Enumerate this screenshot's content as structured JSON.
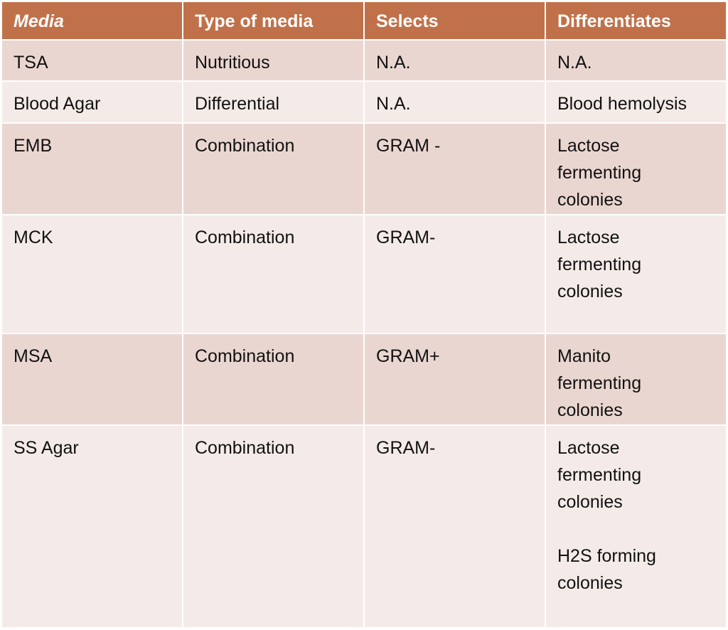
{
  "table": {
    "header": [
      "Media",
      "Type of media",
      "Selects",
      "Differentiates"
    ],
    "rows": [
      [
        "TSA",
        "Nutritious",
        "N.A.",
        "N.A."
      ],
      [
        "Blood Agar",
        "Differential",
        "N.A.",
        "Blood hemolysis"
      ],
      [
        "EMB",
        "Combination",
        "GRAM -",
        [
          "Lactose",
          "fermenting",
          "colonies"
        ]
      ],
      [
        "MCK",
        "Combination",
        "GRAM-",
        [
          "Lactose",
          "fermenting",
          "colonies"
        ]
      ],
      [
        "MSA",
        "Combination",
        "GRAM+",
        [
          "Manito",
          "fermenting",
          "colonies"
        ]
      ],
      [
        "SS Agar",
        "Combination",
        "GRAM-",
        [
          [
            "Lactose",
            "fermenting",
            "colonies"
          ],
          [
            "H2S forming",
            "colonies"
          ]
        ]
      ]
    ]
  }
}
